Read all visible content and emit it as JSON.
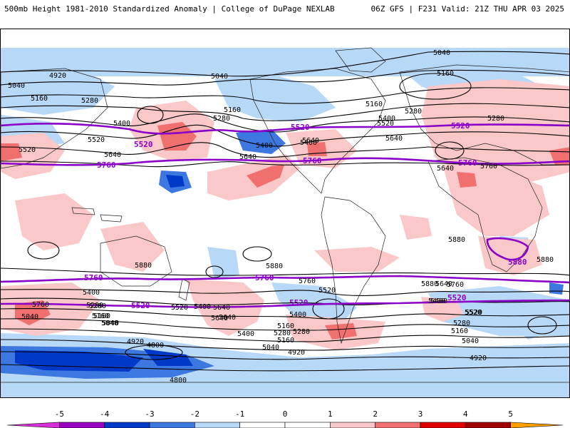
{
  "header": {
    "left_title": "500mb Height 1981-2010 Standardized Anomaly | College of DuPage NEXLAB",
    "right_title": "06Z GFS | F231 Valid: 21Z THU APR 03 2025"
  },
  "colors": {
    "purple_contour": "#8a00c8",
    "black_contour": "#000000",
    "bin_colors": [
      "#d830d8",
      "#9a00c0",
      "#0038c8",
      "#3c78e0",
      "#b8d8f8",
      "#ffffff",
      "#ffffff",
      "#fac8c8",
      "#f07070",
      "#e00000",
      "#a00000",
      "#ffa000"
    ]
  },
  "colorbar": {
    "ticks": [
      "-5",
      "-4",
      "-3",
      "-2",
      "-1",
      "0",
      "1",
      "2",
      "3",
      "4",
      "5"
    ]
  },
  "contours": {
    "black": [
      "5040",
      "4920",
      "5040",
      "5160",
      "5280",
      "5400",
      "5160",
      "5280",
      "5520",
      "5640",
      "5400",
      "5640",
      "5160",
      "5280",
      "5400",
      "5520",
      "5640",
      "5040",
      "5160",
      "5280",
      "5400",
      "5520",
      "5640",
      "5760",
      "5880",
      "5640",
      "5880",
      "5880",
      "5880",
      "5760",
      "5880",
      "5400",
      "5280",
      "5160",
      "5040",
      "5280",
      "5400",
      "5520",
      "5760",
      "5640",
      "5400",
      "5160",
      "5040",
      "4920",
      "4800",
      "4800",
      "4920",
      "5040",
      "5160",
      "5280",
      "5400",
      "5520",
      "5640",
      "5760",
      "5400",
      "5640",
      "5160",
      "5280",
      "5040",
      "4920",
      "5520",
      "5640",
      "5400",
      "5520",
      "5280",
      "5160",
      "5040"
    ],
    "purple": [
      "5520",
      "5520",
      "5520",
      "5760",
      "5760",
      "5760",
      "5760",
      "5760",
      "5520",
      "5520",
      "5520",
      "5880"
    ]
  }
}
